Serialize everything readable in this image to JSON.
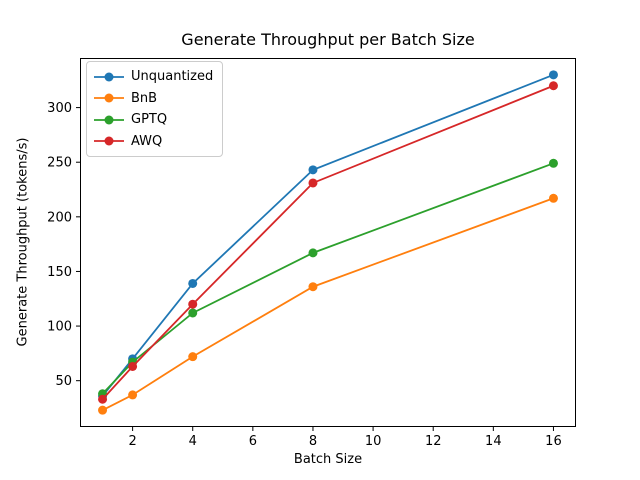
{
  "chart_data": {
    "type": "line",
    "title": "Generate Throughput per Batch Size",
    "xlabel": "Batch Size",
    "ylabel": "Generate Throughput (tokens/s)",
    "x": [
      1,
      2,
      4,
      8,
      16
    ],
    "series": [
      {
        "name": "Unquantized",
        "color": "#1f77b4",
        "values": [
          36,
          70,
          139,
          243,
          330
        ]
      },
      {
        "name": "BnB",
        "color": "#ff7f0e",
        "values": [
          23,
          37,
          72,
          136,
          217
        ]
      },
      {
        "name": "GPTQ",
        "color": "#2ca02c",
        "values": [
          38,
          67,
          112,
          167,
          249
        ]
      },
      {
        "name": "AWQ",
        "color": "#d62728",
        "values": [
          33,
          63,
          120,
          231,
          320
        ]
      }
    ],
    "xticks": [
      2,
      4,
      6,
      8,
      10,
      12,
      14,
      16
    ],
    "yticks": [
      50,
      100,
      150,
      200,
      250,
      300
    ],
    "xlim": [
      0.25,
      16.75
    ],
    "ylim": [
      7.6,
      345.4
    ],
    "grid": false,
    "legend_position": "upper left",
    "marker": "circle",
    "background_color": "#ffffff",
    "axis_color": "#000000"
  }
}
